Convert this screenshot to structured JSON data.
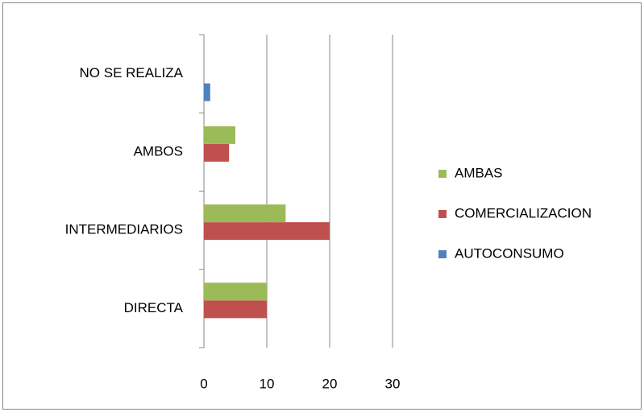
{
  "chart_data": {
    "type": "hbar",
    "categories": [
      "DIRECTA",
      "INTERMEDIARIOS",
      "AMBOS",
      "NO SE REALIZA"
    ],
    "series": [
      {
        "name": "AUTOCONSUMO",
        "color": "#4f81bd",
        "values": [
          0,
          0,
          0,
          1
        ]
      },
      {
        "name": "COMERCIALIZACION",
        "color": "#c0504d",
        "values": [
          10,
          20,
          4,
          0
        ]
      },
      {
        "name": "AMBAS",
        "color": "#9bbb59",
        "values": [
          10,
          13,
          5,
          0
        ]
      }
    ],
    "xlim": [
      0,
      30
    ],
    "xticks": [
      0,
      10,
      20,
      30
    ],
    "grid": true,
    "legend": "right"
  }
}
